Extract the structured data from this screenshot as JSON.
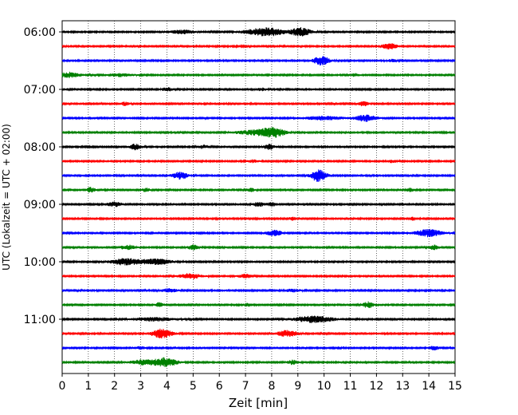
{
  "chart_data": {
    "type": "line",
    "title": "",
    "xlabel": "Zeit  [min]",
    "ylabel": "UTC (Lokalzeit = UTC + 02:00)",
    "xlim": [
      0,
      15
    ],
    "x_ticks": [
      "0",
      "1",
      "2",
      "3",
      "4",
      "5",
      "6",
      "7",
      "8",
      "9",
      "10",
      "11",
      "12",
      "13",
      "14",
      "15"
    ],
    "y_ticks": [
      "06:00",
      "07:00",
      "08:00",
      "09:00",
      "10:00",
      "11:00"
    ],
    "grid": "vertical dotted lines at each minute",
    "trace_interval_minutes": 15,
    "colors_cycle": [
      "#000000",
      "#ff0000",
      "#0000ff",
      "#008000"
    ],
    "traces": [
      {
        "start": "06:00",
        "color": "#000000",
        "bursts": [
          [
            4.6,
            0.5,
            0.4
          ],
          [
            7.4,
            0.6,
            0.5
          ],
          [
            8.0,
            0.5,
            0.7
          ],
          [
            9.1,
            0.4,
            0.9
          ]
        ]
      },
      {
        "start": "06:15",
        "color": "#ff0000",
        "bursts": [
          [
            6.6,
            0.2,
            0.3
          ],
          [
            12.5,
            0.3,
            0.6
          ]
        ]
      },
      {
        "start": "06:30",
        "color": "#0000ff",
        "bursts": [
          [
            9.9,
            0.3,
            1.0
          ],
          [
            12.6,
            0.2,
            0.3
          ]
        ]
      },
      {
        "start": "06:45",
        "color": "#008000",
        "bursts": [
          [
            0.3,
            0.4,
            0.6
          ],
          [
            2.2,
            0.5,
            0.3
          ],
          [
            11.2,
            0.2,
            0.3
          ]
        ]
      },
      {
        "start": "07:00",
        "color": "#000000",
        "bursts": [
          [
            4.0,
            0.2,
            0.4
          ],
          [
            7.6,
            0.2,
            0.3
          ]
        ]
      },
      {
        "start": "07:15",
        "color": "#ff0000",
        "bursts": [
          [
            2.4,
            0.15,
            0.4
          ],
          [
            11.5,
            0.2,
            0.5
          ]
        ]
      },
      {
        "start": "07:30",
        "color": "#0000ff",
        "bursts": [
          [
            10.0,
            0.8,
            0.4
          ],
          [
            11.6,
            0.4,
            0.7
          ]
        ]
      },
      {
        "start": "07:45",
        "color": "#008000",
        "bursts": [
          [
            7.5,
            0.8,
            0.6
          ],
          [
            8.1,
            0.4,
            0.8
          ]
        ]
      },
      {
        "start": "08:00",
        "color": "#000000",
        "bursts": [
          [
            2.8,
            0.2,
            0.7
          ],
          [
            5.4,
            0.2,
            0.4
          ],
          [
            7.9,
            0.2,
            0.6
          ]
        ]
      },
      {
        "start": "08:15",
        "color": "#ff0000",
        "bursts": [
          [
            7.3,
            0.2,
            0.3
          ],
          [
            12.6,
            0.2,
            0.3
          ]
        ]
      },
      {
        "start": "08:30",
        "color": "#0000ff",
        "bursts": [
          [
            4.5,
            0.3,
            0.8
          ],
          [
            9.8,
            0.3,
            1.4
          ]
        ]
      },
      {
        "start": "08:45",
        "color": "#008000",
        "bursts": [
          [
            1.1,
            0.15,
            0.6
          ],
          [
            3.2,
            0.15,
            0.4
          ],
          [
            7.2,
            0.15,
            0.4
          ],
          [
            13.3,
            0.15,
            0.4
          ]
        ]
      },
      {
        "start": "09:00",
        "color": "#000000",
        "bursts": [
          [
            2.0,
            0.3,
            0.5
          ],
          [
            7.5,
            0.2,
            0.5
          ],
          [
            8.0,
            0.2,
            0.4
          ]
        ]
      },
      {
        "start": "09:15",
        "color": "#ff0000",
        "bursts": [
          [
            8.8,
            0.15,
            0.4
          ],
          [
            13.4,
            0.15,
            0.3
          ]
        ]
      },
      {
        "start": "09:30",
        "color": "#0000ff",
        "bursts": [
          [
            8.1,
            0.3,
            0.6
          ],
          [
            14.0,
            0.5,
            0.8
          ]
        ]
      },
      {
        "start": "09:45",
        "color": "#008000",
        "bursts": [
          [
            2.5,
            0.3,
            0.5
          ],
          [
            5.0,
            0.2,
            0.6
          ],
          [
            14.2,
            0.2,
            0.5
          ]
        ]
      },
      {
        "start": "10:00",
        "color": "#000000",
        "bursts": [
          [
            2.4,
            0.6,
            0.7
          ],
          [
            3.6,
            0.6,
            0.6
          ]
        ]
      },
      {
        "start": "10:15",
        "color": "#ff0000",
        "bursts": [
          [
            4.9,
            0.4,
            0.6
          ],
          [
            7.0,
            0.3,
            0.4
          ]
        ]
      },
      {
        "start": "10:30",
        "color": "#0000ff",
        "bursts": [
          [
            4.1,
            0.3,
            0.4
          ],
          [
            8.8,
            0.3,
            0.3
          ]
        ]
      },
      {
        "start": "10:45",
        "color": "#008000",
        "bursts": [
          [
            3.7,
            0.15,
            0.5
          ],
          [
            7.1,
            0.15,
            0.4
          ],
          [
            11.7,
            0.2,
            0.7
          ]
        ]
      },
      {
        "start": "11:00",
        "color": "#000000",
        "bursts": [
          [
            3.5,
            0.8,
            0.4
          ],
          [
            9.6,
            0.8,
            0.7
          ]
        ]
      },
      {
        "start": "11:15",
        "color": "#ff0000",
        "bursts": [
          [
            3.8,
            0.4,
            1.0
          ],
          [
            8.6,
            0.4,
            0.7
          ]
        ]
      },
      {
        "start": "11:30",
        "color": "#0000ff",
        "bursts": [
          [
            3.0,
            0.2,
            0.3
          ],
          [
            14.2,
            0.2,
            0.4
          ]
        ]
      },
      {
        "start": "11:45",
        "color": "#008000",
        "bursts": [
          [
            3.2,
            0.6,
            0.6
          ],
          [
            4.0,
            0.4,
            0.9
          ],
          [
            8.8,
            0.2,
            0.5
          ]
        ]
      }
    ]
  }
}
